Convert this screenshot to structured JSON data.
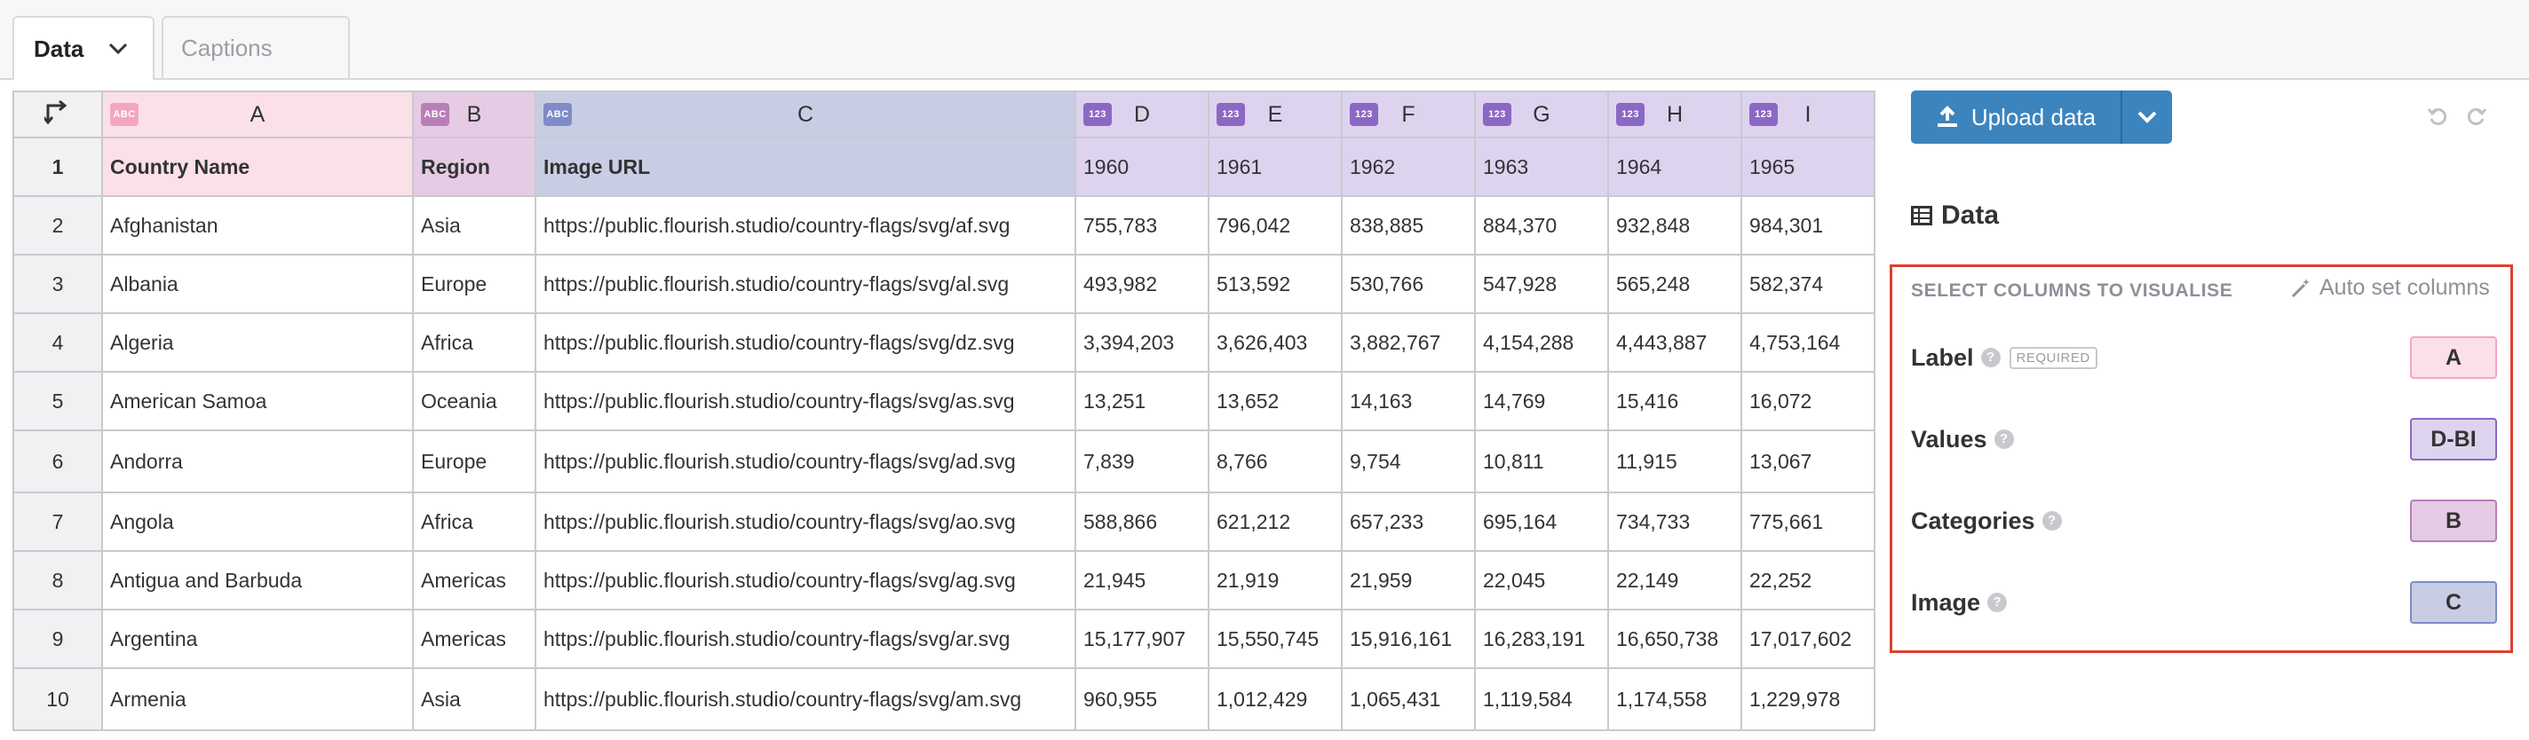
{
  "tabs": [
    {
      "label": "Data"
    },
    {
      "label": "Captions"
    }
  ],
  "grid": {
    "columns": [
      {
        "letter": "A",
        "type": "ABC"
      },
      {
        "letter": "B",
        "type": "ABC"
      },
      {
        "letter": "C",
        "type": "ABC"
      },
      {
        "letter": "D",
        "type": "123"
      },
      {
        "letter": "E",
        "type": "123"
      },
      {
        "letter": "F",
        "type": "123"
      },
      {
        "letter": "G",
        "type": "123"
      },
      {
        "letter": "H",
        "type": "123"
      },
      {
        "letter": "I",
        "type": "123"
      }
    ],
    "rows": [
      {
        "num": "1",
        "cells": [
          "Country Name",
          "Region",
          "Image URL",
          "1960",
          "1961",
          "1962",
          "1963",
          "1964",
          "1965"
        ]
      },
      {
        "num": "2",
        "cells": [
          "Afghanistan",
          "Asia",
          "https://public.flourish.studio/country-flags/svg/af.svg",
          "755,783",
          "796,042",
          "838,885",
          "884,370",
          "932,848",
          "984,301"
        ]
      },
      {
        "num": "3",
        "cells": [
          "Albania",
          "Europe",
          "https://public.flourish.studio/country-flags/svg/al.svg",
          "493,982",
          "513,592",
          "530,766",
          "547,928",
          "565,248",
          "582,374"
        ]
      },
      {
        "num": "4",
        "cells": [
          "Algeria",
          "Africa",
          "https://public.flourish.studio/country-flags/svg/dz.svg",
          "3,394,203",
          "3,626,403",
          "3,882,767",
          "4,154,288",
          "4,443,887",
          "4,753,164"
        ]
      },
      {
        "num": "5",
        "cells": [
          "American Samoa",
          "Oceania",
          "https://public.flourish.studio/country-flags/svg/as.svg",
          "13,251",
          "13,652",
          "14,163",
          "14,769",
          "15,416",
          "16,072"
        ]
      },
      {
        "num": "6",
        "cells": [
          "Andorra",
          "Europe",
          "https://public.flourish.studio/country-flags/svg/ad.svg",
          "7,839",
          "8,766",
          "9,754",
          "10,811",
          "11,915",
          "13,067"
        ]
      },
      {
        "num": "7",
        "cells": [
          "Angola",
          "Africa",
          "https://public.flourish.studio/country-flags/svg/ao.svg",
          "588,866",
          "621,212",
          "657,233",
          "695,164",
          "734,733",
          "775,661"
        ]
      },
      {
        "num": "8",
        "cells": [
          "Antigua and Barbuda",
          "Americas",
          "https://public.flourish.studio/country-flags/svg/ag.svg",
          "21,945",
          "21,919",
          "21,959",
          "22,045",
          "22,149",
          "22,252"
        ]
      },
      {
        "num": "9",
        "cells": [
          "Argentina",
          "Americas",
          "https://public.flourish.studio/country-flags/svg/ar.svg",
          "15,177,907",
          "15,550,745",
          "15,916,161",
          "16,283,191",
          "16,650,738",
          "17,017,602"
        ]
      },
      {
        "num": "10",
        "cells": [
          "Armenia",
          "Asia",
          "https://public.flourish.studio/country-flags/svg/am.svg",
          "960,955",
          "1,012,429",
          "1,065,431",
          "1,119,584",
          "1,174,558",
          "1,229,978"
        ]
      }
    ]
  },
  "panel": {
    "upload_label": "Upload data",
    "data_heading": "Data",
    "select_title": "SELECT COLUMNS TO VISUALISE",
    "autoset_label": "Auto set columns",
    "required_tag": "REQUIRED",
    "bindings": [
      {
        "label": "Label",
        "value": "A"
      },
      {
        "label": "Values",
        "value": "D-BI"
      },
      {
        "label": "Categories",
        "value": "B"
      },
      {
        "label": "Image",
        "value": "C"
      }
    ]
  },
  "colors": {
    "col_a": "#fbe0e8",
    "col_b": "#e5cbe4",
    "col_c": "#c9cde4",
    "col_num": "#ddd3ef",
    "upload_button": "#3c84be",
    "highlight_border": "#e0402f"
  }
}
